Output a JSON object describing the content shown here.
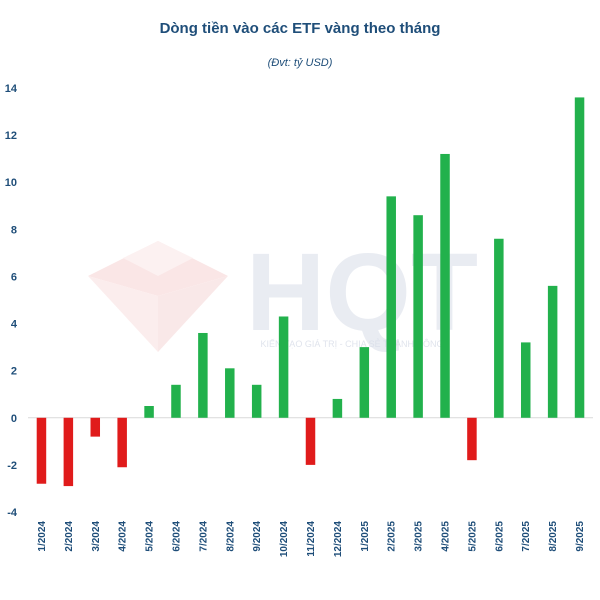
{
  "title": "Dòng tiền vào các ETF vàng theo tháng",
  "subtitle": "(Đvt: tỷ USD)",
  "watermark": {
    "logo_text": "HQT",
    "tagline": "KIẾN TẠO GIÁ TRỊ - CHIA SẺ THÀNH CÔNG"
  },
  "colors": {
    "positive": "#22b14c",
    "negative": "#e01b1b",
    "text": "#1f4e79"
  },
  "chart_data": {
    "type": "bar",
    "title": "Dòng tiền vào các ETF vàng theo tháng",
    "subtitle": "(Đvt: tỷ USD)",
    "xlabel": "",
    "ylabel": "",
    "ylim": [
      -4,
      14
    ],
    "yticks": [
      -4,
      -2,
      0,
      2,
      4,
      6,
      8,
      10,
      12,
      14
    ],
    "grid": false,
    "legend": "none",
    "categories": [
      "1/2024",
      "2/2024",
      "3/2024",
      "4/2024",
      "5/2024",
      "6/2024",
      "7/2024",
      "8/2024",
      "9/2024",
      "10/2024",
      "11/2024",
      "12/2024",
      "1/2025",
      "2/2025",
      "3/2025",
      "4/2025",
      "5/2025",
      "6/2025",
      "7/2025",
      "8/2025",
      "9/2025"
    ],
    "values": [
      -2.8,
      -2.9,
      -0.8,
      -2.1,
      0.5,
      1.4,
      3.6,
      2.1,
      1.4,
      4.3,
      -2.0,
      0.8,
      3.0,
      9.4,
      8.6,
      11.2,
      -1.8,
      7.6,
      3.2,
      5.6,
      13.6
    ]
  }
}
